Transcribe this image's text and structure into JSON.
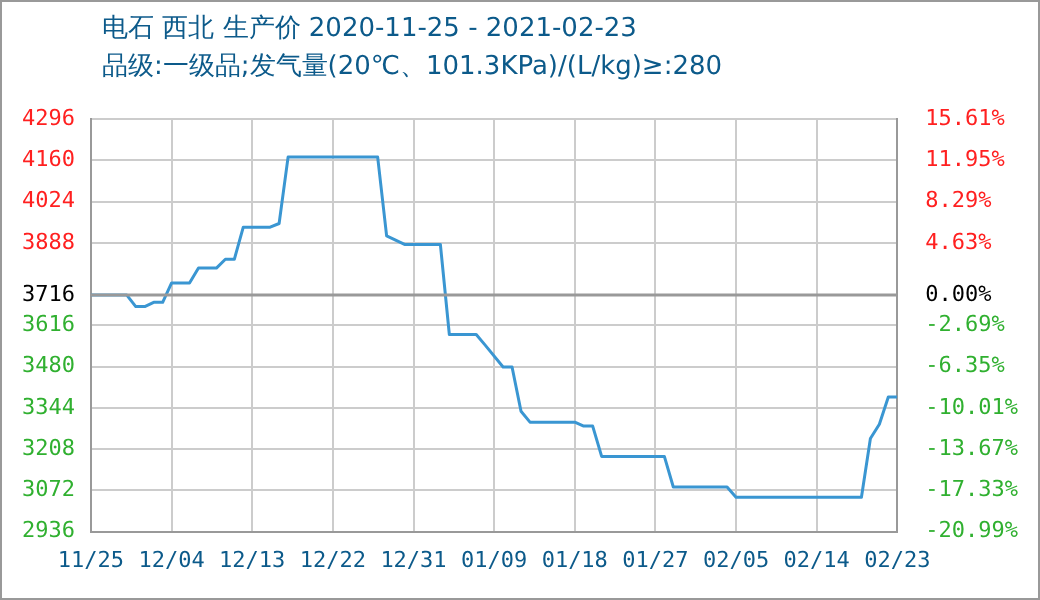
{
  "chart_data": {
    "type": "line",
    "title": "电石 西北 生产价 2020-11-25 - 2021-02-23",
    "subtitle": "品级:一级品;发气量(20℃、101.3KPa)/(L/kg)≥:280",
    "x": [
      "2020-11-25",
      "2020-11-29",
      "2020-11-30",
      "2020-12-01",
      "2020-12-02",
      "2020-12-03",
      "2020-12-04",
      "2020-12-06",
      "2020-12-07",
      "2020-12-09",
      "2020-12-10",
      "2020-12-11",
      "2020-12-12",
      "2020-12-15",
      "2020-12-16",
      "2020-12-17",
      "2020-12-27",
      "2020-12-28",
      "2020-12-29",
      "2020-12-30",
      "2021-01-03",
      "2021-01-04",
      "2021-01-07",
      "2021-01-08",
      "2021-01-10",
      "2021-01-11",
      "2021-01-12",
      "2021-01-13",
      "2021-01-18",
      "2021-01-19",
      "2021-01-20",
      "2021-01-21",
      "2021-01-28",
      "2021-01-29",
      "2021-02-04",
      "2021-02-05",
      "2021-02-19",
      "2021-02-20",
      "2021-02-21",
      "2021-02-22",
      "2021-02-23"
    ],
    "series": [
      {
        "color": "#3a96d2",
        "values": [
          3716,
          3716,
          3678,
          3678,
          3692,
          3692,
          3756,
          3756,
          3805,
          3805,
          3834,
          3834,
          3940,
          3940,
          3952,
          4171,
          4171,
          3911,
          3897,
          3883,
          3883,
          3586,
          3586,
          3551,
          3479,
          3479,
          3333,
          3297,
          3297,
          3284,
          3284,
          3184,
          3184,
          3083,
          3083,
          3049,
          3049,
          3243,
          3290,
          3380,
          3380
        ]
      }
    ],
    "xlim": [
      "2020-11-25",
      "2021-02-23"
    ],
    "xticks": [
      {
        "value": "2020-11-25",
        "label": "11/25"
      },
      {
        "value": "2020-12-04",
        "label": "12/04"
      },
      {
        "value": "2020-12-13",
        "label": "12/13"
      },
      {
        "value": "2020-12-22",
        "label": "12/22"
      },
      {
        "value": "2020-12-31",
        "label": "12/31"
      },
      {
        "value": "2021-01-09",
        "label": "01/09"
      },
      {
        "value": "2021-01-18",
        "label": "01/18"
      },
      {
        "value": "2021-01-27",
        "label": "01/27"
      },
      {
        "value": "2021-02-05",
        "label": "02/05"
      },
      {
        "value": "2021-02-14",
        "label": "02/14"
      },
      {
        "value": "2021-02-23",
        "label": "02/23"
      }
    ],
    "ylim": [
      2936,
      4296
    ],
    "yticks": [
      2936,
      3072,
      3208,
      3344,
      3480,
      3616,
      3716,
      3888,
      4024,
      4160,
      4296
    ],
    "y2lim": [
      -20.99,
      15.61
    ],
    "y2ticks": [
      {
        "value": -20.99,
        "label": "-20.99%"
      },
      {
        "value": -17.33,
        "label": "-17.33%"
      },
      {
        "value": -13.67,
        "label": "-13.67%"
      },
      {
        "value": -10.01,
        "label": "-10.01%"
      },
      {
        "value": -6.35,
        "label": "-6.35%"
      },
      {
        "value": -2.69,
        "label": "-2.69%"
      },
      {
        "value": 0,
        "label": "0.00%"
      },
      {
        "value": 4.63,
        "label": "4.63%"
      },
      {
        "value": 8.29,
        "label": "8.29%"
      },
      {
        "value": 11.95,
        "label": "11.95%"
      },
      {
        "value": 15.61,
        "label": "15.61%"
      }
    ],
    "ref_lines": [
      {
        "axis": "y",
        "value": 3716,
        "color": "#999999"
      }
    ],
    "grid": true,
    "marker": "none",
    "line_style": "solid"
  }
}
